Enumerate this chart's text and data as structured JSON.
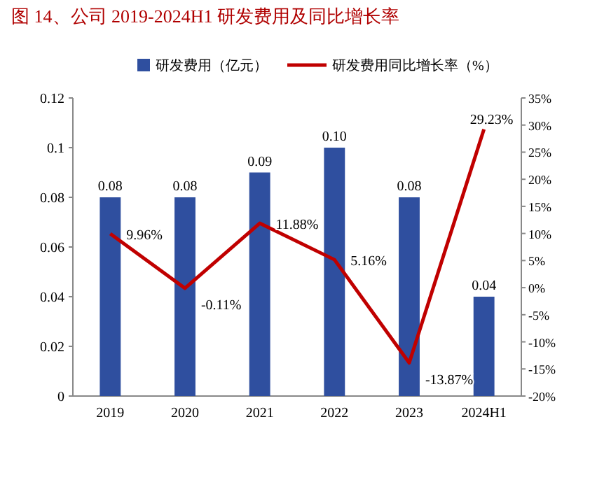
{
  "chart_data": {
    "type": "bar",
    "title": "图 14、公司 2019-2024H1 研发费用及同比增长率",
    "categories": [
      "2019",
      "2020",
      "2021",
      "2022",
      "2023",
      "2024H1"
    ],
    "series": [
      {
        "name": "研发费用（亿元）",
        "color": "#2f4f9f",
        "values": [
          0.08,
          0.08,
          0.09,
          0.1,
          0.08,
          0.04
        ],
        "value_labels": [
          "0.08",
          "0.08",
          "0.09",
          "0.10",
          "0.08",
          "0.04"
        ]
      },
      {
        "name": "研发费用同比增长率（%）",
        "type": "line",
        "axis": "y2",
        "color": "#c00000",
        "values": [
          9.96,
          -0.11,
          11.88,
          5.16,
          -13.87,
          29.23
        ],
        "value_labels": [
          "9.96%",
          "-0.11%",
          "11.88%",
          "5.16%",
          "-13.87%",
          "29.23%"
        ]
      }
    ],
    "ylim": [
      0,
      0.12
    ],
    "yticks": [
      0,
      0.02,
      0.04,
      0.06,
      0.08,
      0.1,
      0.12
    ],
    "y2lim": [
      -20,
      35
    ],
    "y2ticks": [
      {
        "value": -20,
        "label": "-20%"
      },
      {
        "value": -15,
        "label": "-15%"
      },
      {
        "value": -10,
        "label": "-10%"
      },
      {
        "value": -5,
        "label": "-5%"
      },
      {
        "value": 0,
        "label": "0%"
      },
      {
        "value": 5,
        "label": "5%"
      },
      {
        "value": 10,
        "label": "10%"
      },
      {
        "value": 15,
        "label": "15%"
      },
      {
        "value": 20,
        "label": "20%"
      },
      {
        "value": 25,
        "label": "25%"
      },
      {
        "value": 30,
        "label": "30%"
      },
      {
        "value": 35,
        "label": "35%"
      }
    ],
    "legend": "top",
    "grid": false
  }
}
